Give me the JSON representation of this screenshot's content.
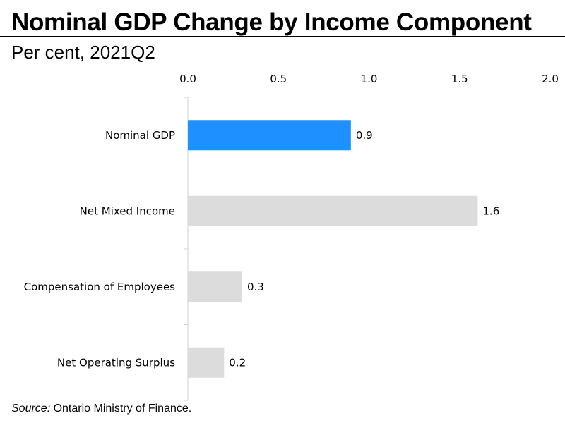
{
  "chart_data": {
    "type": "bar",
    "orientation": "horizontal",
    "title": "Nominal GDP Change by Income Component",
    "subtitle": "Per cent, 2021Q2",
    "categories": [
      "Nominal GDP",
      "Net Mixed Income",
      "Compensation of Employees",
      "Net Operating Surplus"
    ],
    "values": [
      0.9,
      1.6,
      0.3,
      0.2
    ],
    "value_labels": [
      "0.9",
      "1.6",
      "0.3",
      "0.2"
    ],
    "bar_colors": [
      "#1e90ff",
      "#dcdcdc",
      "#dcdcdc",
      "#dcdcdc"
    ],
    "xlim": [
      0,
      2.0
    ],
    "xticks": [
      0,
      0.5,
      1.0,
      1.5,
      2.0
    ],
    "xtick_labels": [
      "0.0",
      "0.5",
      "1.0",
      "1.5",
      "2.0"
    ],
    "xaxis_position": "top",
    "xlabel": "",
    "ylabel": "",
    "grid": false,
    "legend": "none"
  },
  "source": {
    "label": "Source:",
    "text": " Ontario Ministry of Finance."
  }
}
